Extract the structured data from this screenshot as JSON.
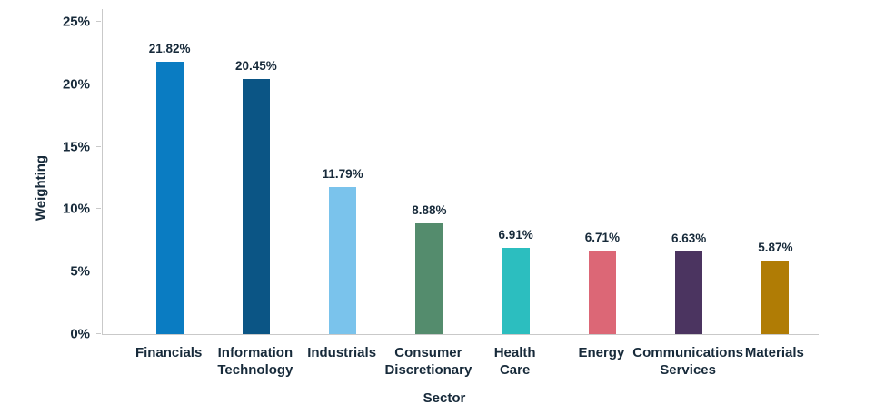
{
  "chart_data": {
    "type": "bar",
    "title": "",
    "xlabel": "Sector",
    "ylabel": "Weighting",
    "ylim": [
      0,
      25
    ],
    "y_tick_step": 5,
    "y_tick_labels": [
      "0%",
      "5%",
      "10%",
      "15%",
      "20%",
      "25%"
    ],
    "grid": false,
    "legend": null,
    "categories": [
      "Financials",
      "Information\nTechnology",
      "Industrials",
      "Consumer\nDiscretionary",
      "Health\nCare",
      "Energy",
      "Communications\nServices",
      "Materials"
    ],
    "values": [
      21.82,
      20.45,
      11.79,
      8.88,
      6.91,
      6.71,
      6.63,
      5.87
    ],
    "value_labels": [
      "21.82%",
      "20.45%",
      "11.79%",
      "8.88%",
      "6.91%",
      "6.71%",
      "6.63%",
      "5.87%"
    ],
    "bar_colors": [
      "#0A7CC2",
      "#0B5585",
      "#7AC3EC",
      "#548C6D",
      "#2CBEBF",
      "#DC6776",
      "#4B3460",
      "#B07C05"
    ],
    "text_color": "#172A3A",
    "axis_color": "#C9C9C9"
  }
}
